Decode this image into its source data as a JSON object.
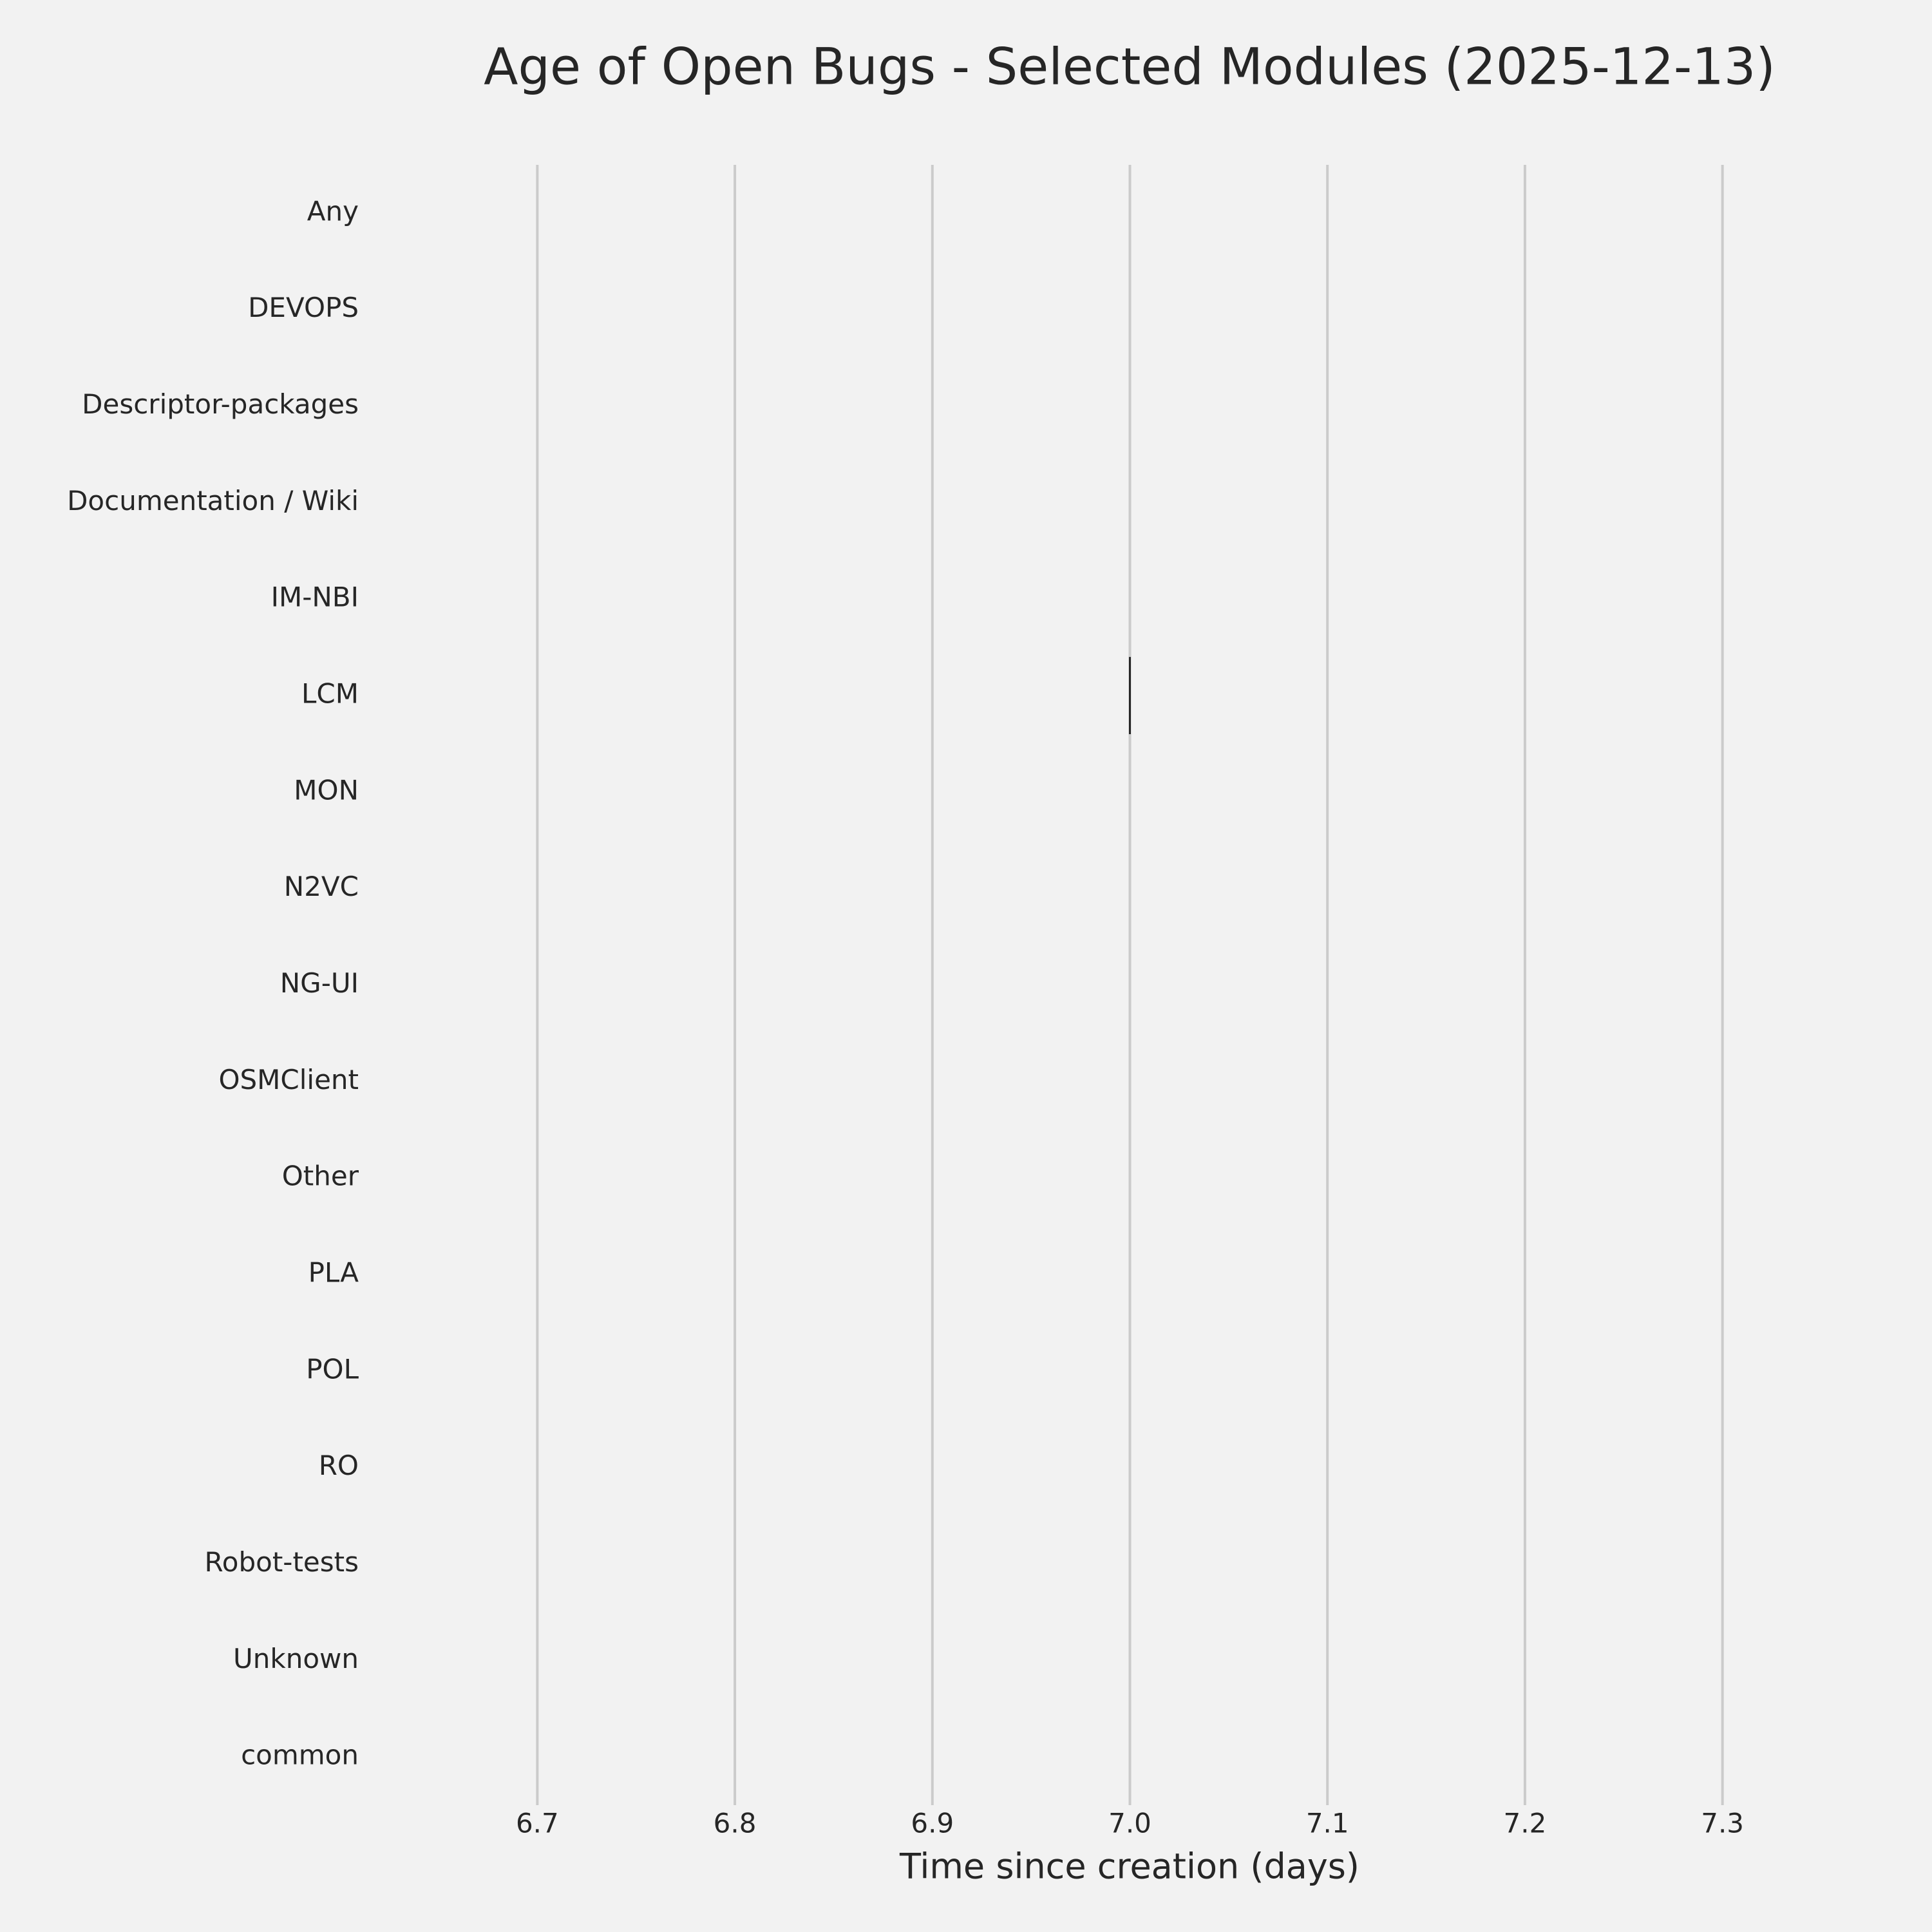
{
  "chart_data": {
    "type": "box",
    "title": "Age of Open Bugs - Selected Modules (2025-12-13)",
    "x_label": "Time since creation (days)",
    "categories": [
      "Any",
      "DEVOPS",
      "Descriptor-packages",
      "Documentation / Wiki",
      "IM-NBI",
      "LCM",
      "MON",
      "N2VC",
      "NG-UI",
      "OSMClient",
      "Other",
      "PLA",
      "POL",
      "RO",
      "Robot-tests",
      "Unknown",
      "common"
    ],
    "values": [
      null,
      null,
      null,
      null,
      null,
      7,
      null,
      null,
      null,
      null,
      null,
      null,
      null,
      null,
      null,
      null,
      null
    ],
    "color": "#262626",
    "xlim": [
      6.65,
      7.35
    ],
    "xticks": [
      6.7,
      6.8,
      6.9,
      {
        "value": 7,
        "label": "7.0"
      },
      7.1,
      7.2,
      7.3
    ],
    "grid": true
  }
}
